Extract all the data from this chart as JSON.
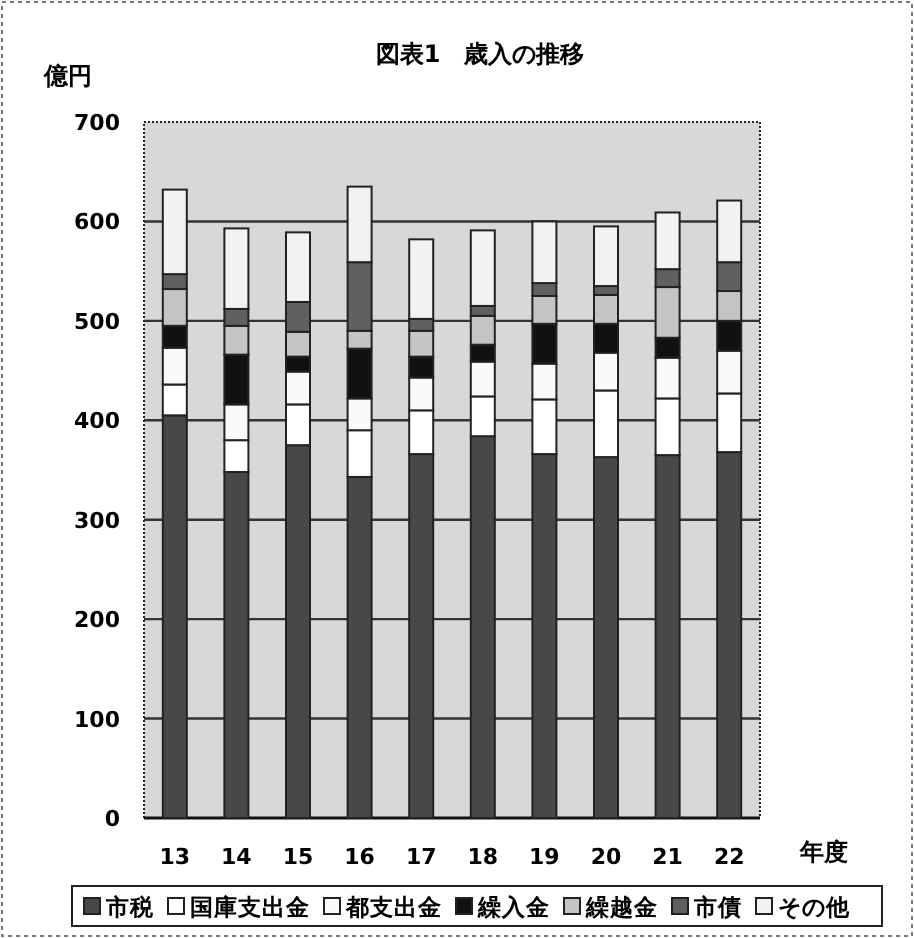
{
  "chart_data": {
    "type": "bar",
    "stacked": true,
    "title": "図表1　歳入の推移",
    "ylabel": "億円",
    "xlabel": "年度",
    "categories": [
      "13",
      "14",
      "15",
      "16",
      "17",
      "18",
      "19",
      "20",
      "21",
      "22"
    ],
    "ylim": [
      0,
      700
    ],
    "yticks": [
      0,
      100,
      200,
      300,
      400,
      500,
      600,
      700
    ],
    "grid": "y",
    "legend": "bottom",
    "series": [
      {
        "name": "市税",
        "color": "#484848",
        "values": [
          405,
          348,
          375,
          343,
          366,
          384,
          366,
          363,
          365,
          368
        ]
      },
      {
        "name": "国庫支出金",
        "color": "#ffffff",
        "values": [
          31,
          32,
          41,
          47,
          44,
          40,
          55,
          67,
          57,
          59
        ]
      },
      {
        "name": "都支出金",
        "color": "#fafafa",
        "values": [
          37,
          36,
          33,
          32,
          33,
          35,
          36,
          38,
          41,
          43
        ]
      },
      {
        "name": "繰入金",
        "color": "#111111",
        "values": [
          22,
          50,
          15,
          50,
          21,
          17,
          40,
          29,
          20,
          30
        ]
      },
      {
        "name": "繰越金",
        "color": "#c4c4c4",
        "values": [
          37,
          29,
          25,
          18,
          26,
          29,
          28,
          29,
          51,
          30
        ]
      },
      {
        "name": "市債",
        "color": "#606060",
        "values": [
          15,
          17,
          30,
          69,
          12,
          10,
          13,
          9,
          18,
          29
        ]
      },
      {
        "name": "その他",
        "color": "#f2f2f2",
        "values": [
          85,
          81,
          70,
          76,
          80,
          76,
          62,
          60,
          57,
          62
        ]
      }
    ]
  }
}
